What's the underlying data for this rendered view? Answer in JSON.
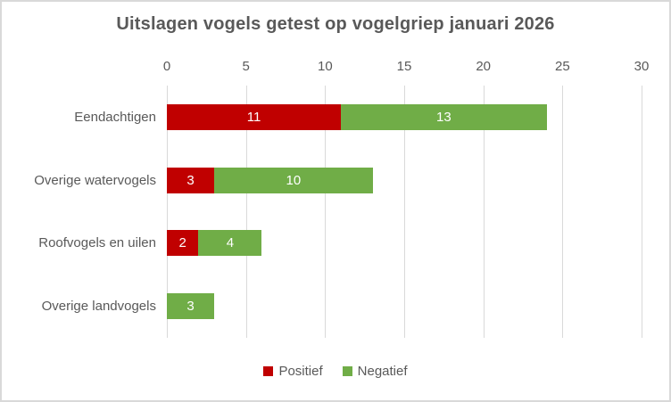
{
  "chart_data": {
    "type": "bar",
    "orientation": "horizontal-stacked",
    "title": "Uitslagen vogels getest op vogelgriep januari 2026",
    "categories": [
      "Eendachtigen",
      "Overige watervogels",
      "Roofvogels en uilen",
      "Overige landvogels"
    ],
    "series": [
      {
        "name": "Positief",
        "color": "#C00000",
        "values": [
          11,
          3,
          2,
          0
        ]
      },
      {
        "name": "Negatief",
        "color": "#70AD47",
        "values": [
          13,
          10,
          4,
          3
        ]
      }
    ],
    "x_axis": {
      "min": 0,
      "max": 30,
      "tick_interval": 5,
      "ticks": [
        0,
        5,
        10,
        15,
        20,
        25,
        30
      ],
      "position": "top"
    },
    "grid": true,
    "gridline_color": "#D9D9D9",
    "legend_position": "bottom",
    "data_labels": true,
    "data_label_color": "#FFFFFF",
    "text_color": "#595959",
    "border_color": "#D9D9D9"
  }
}
